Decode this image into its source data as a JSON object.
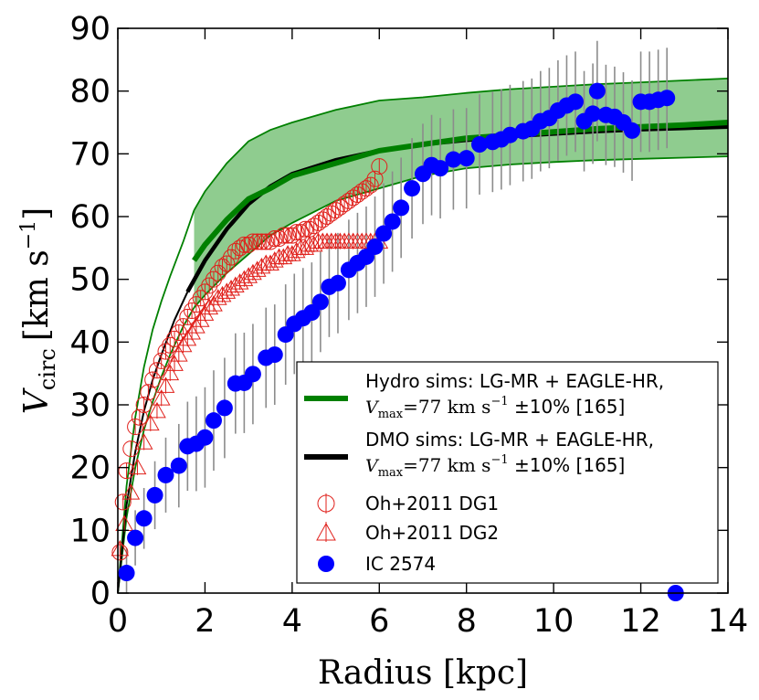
{
  "chart_data": {
    "type": "line",
    "title": "",
    "xlabel": "Radius [kpc]",
    "ylabel_symbol": "V",
    "ylabel_subscript": "circ",
    "ylabel_units": "[km s",
    "ylabel_exponent": "−1",
    "ylabel_close": "]",
    "xlim": [
      0,
      14
    ],
    "ylim": [
      0,
      90
    ],
    "xticks": [
      "0",
      "2",
      "4",
      "6",
      "8",
      "10",
      "12",
      "14"
    ],
    "yticks": [
      "0",
      "10",
      "20",
      "30",
      "40",
      "50",
      "60",
      "70",
      "80",
      "90"
    ],
    "colors": {
      "hydro": "#008000",
      "hydro_band": "#8fcc8f",
      "dmo": "#000000",
      "dg": "#e0201b",
      "ic": "#0000ff",
      "errorbar": "#8c8c8c"
    },
    "legend": {
      "position": "lower-right",
      "entries": [
        {
          "key": "hydro",
          "line1": "Hydro sims: LG-MR + EAGLE-HR,",
          "line2_sym": "V",
          "line2_sub": "max",
          "line2_rest": "=77 km s",
          "line2_exp": "−1",
          "line2_tail": "  ±10% [165]"
        },
        {
          "key": "dmo",
          "line1": "DMO sims: LG-MR + EAGLE-HR,",
          "line2_sym": "V",
          "line2_sub": "max",
          "line2_rest": "=77 km s",
          "line2_exp": "−1",
          "line2_tail": "  ±10% [165]"
        },
        {
          "key": "dg1",
          "line1": "Oh+2011 DG1"
        },
        {
          "key": "dg2",
          "line1": "Oh+2011 DG2"
        },
        {
          "key": "ic",
          "line1": "IC 2574"
        }
      ]
    },
    "series": [
      {
        "name": "Hydro sims: LG-MR + EAGLE-HR, Vmax=77 km/s ±10% [165] (median)",
        "x": [
          1.75,
          2.0,
          2.5,
          3.0,
          3.5,
          4.0,
          5.0,
          6.0,
          7.0,
          8.0,
          9.0,
          10.0,
          11.0,
          12.0,
          13.0,
          14.0
        ],
        "y": [
          53.0,
          55.5,
          59.5,
          62.8,
          64.5,
          66.5,
          68.5,
          70.5,
          71.5,
          72.5,
          73.0,
          73.5,
          74.0,
          74.3,
          74.6,
          75.0
        ]
      },
      {
        "name": "Hydro sims band upper",
        "x": [
          1.75,
          2.0,
          2.5,
          3.0,
          3.5,
          4.0,
          5.0,
          6.0,
          7.0,
          8.0,
          9.0,
          10.0,
          11.0,
          12.0,
          13.0,
          14.0
        ],
        "y": [
          61.0,
          64.0,
          68.5,
          72.0,
          73.8,
          75.0,
          77.0,
          78.5,
          79.0,
          79.7,
          80.3,
          80.7,
          81.1,
          81.4,
          81.7,
          82.0
        ]
      },
      {
        "name": "Hydro sims band lower",
        "x": [
          1.75,
          2.0,
          2.5,
          3.0,
          3.5,
          4.0,
          5.0,
          6.0,
          7.0,
          8.0,
          9.0,
          10.0,
          11.0,
          12.0,
          13.0,
          14.0
        ],
        "y": [
          45.5,
          47.5,
          51.0,
          54.0,
          57.0,
          59.0,
          62.5,
          64.5,
          66.5,
          67.7,
          68.3,
          68.7,
          69.0,
          69.2,
          69.4,
          69.6
        ]
      },
      {
        "name": "Hydro sims inner upper line",
        "x": [
          0.0,
          0.2,
          0.4,
          0.6,
          0.8,
          1.0,
          1.2,
          1.5,
          1.75
        ],
        "y": [
          0,
          17,
          28,
          36,
          42,
          46.5,
          50.5,
          56,
          61
        ]
      },
      {
        "name": "Hydro sims inner lower line",
        "x": [
          0.0,
          0.2,
          0.4,
          0.6,
          0.8,
          1.0,
          1.2,
          1.5,
          1.75
        ],
        "y": [
          0,
          12,
          20,
          26,
          30.5,
          34.5,
          38,
          42.5,
          45.5
        ]
      },
      {
        "name": "DMO sims: LG-MR + EAGLE-HR, Vmax=77 km/s ±10% [165]",
        "x": [
          0.0,
          0.2,
          0.4,
          0.6,
          0.8,
          1.0,
          1.3,
          1.6,
          2.0,
          2.5,
          3.0,
          3.5,
          4.0,
          5.0,
          6.0,
          7.0,
          8.0,
          9.0,
          10.0,
          11.0,
          12.0,
          13.0,
          14.0
        ],
        "y": [
          0,
          14,
          22.5,
          29,
          34,
          38,
          43.5,
          48,
          53,
          58,
          62,
          64.8,
          66.8,
          69,
          70.5,
          71.5,
          72.2,
          72.8,
          73.2,
          73.6,
          73.9,
          74.1,
          74.3
        ]
      },
      {
        "name": "Oh+2011 DG1",
        "x": [
          0.05,
          0.12,
          0.2,
          0.3,
          0.4,
          0.5,
          0.6,
          0.7,
          0.8,
          0.9,
          1.0,
          1.1,
          1.2,
          1.3,
          1.4,
          1.5,
          1.6,
          1.7,
          1.8,
          1.9,
          2.0,
          2.1,
          2.2,
          2.3,
          2.4,
          2.5,
          2.6,
          2.7,
          2.8,
          2.9,
          3.0,
          3.1,
          3.2,
          3.3,
          3.4,
          3.5,
          3.6,
          3.7,
          3.8,
          3.9,
          4.0,
          4.1,
          4.2,
          4.3,
          4.4,
          4.5,
          4.6,
          4.7,
          4.8,
          4.9,
          5.0,
          5.1,
          5.2,
          5.3,
          5.4,
          5.5,
          5.6,
          5.7,
          5.8,
          5.9,
          6.0
        ],
        "y": [
          6.5,
          14.5,
          19.5,
          23,
          26.5,
          28,
          30,
          32,
          34,
          35.5,
          37,
          38.5,
          39.5,
          40.5,
          41.5,
          42.5,
          44,
          45,
          46,
          47,
          48,
          49,
          50,
          51,
          52,
          52.5,
          53.5,
          54.5,
          55,
          55.5,
          55.5,
          56,
          56,
          56,
          56,
          56,
          56.5,
          56.5,
          57,
          57,
          57,
          57.5,
          57.5,
          58,
          58,
          58.5,
          59,
          59.5,
          60,
          60.5,
          61,
          61.5,
          62,
          62.5,
          63,
          63.5,
          64,
          64.5,
          65,
          66,
          68
        ]
      },
      {
        "name": "Oh+2011 DG2",
        "x": [
          0.05,
          0.15,
          0.3,
          0.45,
          0.6,
          0.75,
          0.9,
          1.0,
          1.1,
          1.2,
          1.3,
          1.4,
          1.5,
          1.6,
          1.7,
          1.8,
          1.9,
          2.0,
          2.1,
          2.2,
          2.3,
          2.4,
          2.5,
          2.6,
          2.7,
          2.8,
          2.9,
          3.0,
          3.1,
          3.2,
          3.3,
          3.4,
          3.5,
          3.6,
          3.7,
          3.8,
          3.9,
          4.0,
          4.1,
          4.2,
          4.3,
          4.4,
          4.5,
          4.6,
          4.7,
          4.8,
          4.9,
          5.0,
          5.1,
          5.2,
          5.3,
          5.4,
          5.5,
          5.6,
          5.7,
          5.8,
          5.9,
          6.0
        ],
        "y": [
          7,
          11,
          16,
          20,
          24,
          27,
          29,
          31,
          33,
          35,
          36.5,
          38,
          39.5,
          40.5,
          41.5,
          42.5,
          43.5,
          44.5,
          45.5,
          46,
          47,
          47.5,
          48,
          48.5,
          49,
          49.5,
          50,
          50.5,
          51,
          51.5,
          52,
          52.5,
          52.5,
          53,
          53.5,
          53.5,
          54,
          54,
          54.5,
          55,
          55,
          55.5,
          55.5,
          56,
          56,
          56,
          56,
          56,
          56,
          56,
          56,
          56,
          56,
          56,
          56,
          56,
          56,
          56
        ]
      },
      {
        "name": "IC 2574",
        "x": [
          0.2,
          0.4,
          0.6,
          0.85,
          1.1,
          1.4,
          1.6,
          1.8,
          2.0,
          2.2,
          2.45,
          2.7,
          2.9,
          3.1,
          3.4,
          3.6,
          3.85,
          4.05,
          4.25,
          4.45,
          4.65,
          4.85,
          5.05,
          5.3,
          5.5,
          5.7,
          5.9,
          6.1,
          6.3,
          6.5,
          6.75,
          7.0,
          7.2,
          7.4,
          7.7,
          8.0,
          8.3,
          8.6,
          8.8,
          9.0,
          9.3,
          9.5,
          9.7,
          9.9,
          10.1,
          10.3,
          10.5,
          10.7,
          10.9,
          11.0,
          11.2,
          11.4,
          11.6,
          11.8,
          12.0,
          12.2,
          12.4,
          12.6,
          12.8
        ],
        "y": [
          3.2,
          8.8,
          11.9,
          15.6,
          18.8,
          20.3,
          23.4,
          23.8,
          24.8,
          27.5,
          29.5,
          33.4,
          33.5,
          34.9,
          37.5,
          38,
          41.2,
          42.9,
          43.8,
          44.7,
          46.4,
          48.8,
          49.4,
          51.5,
          52.6,
          53.6,
          55.2,
          57.3,
          59.2,
          61.4,
          64.5,
          66.8,
          68.2,
          67.7,
          69.1,
          69.3,
          71.5,
          71.9,
          72.3,
          73.0,
          73.6,
          74.0,
          75.2,
          75.7,
          76.9,
          77.7,
          78.3,
          75.2,
          76.4,
          80.0,
          76.2,
          75.9,
          75.0,
          73.7,
          78.3,
          78.3,
          78.6,
          78.9,
          0
        ]
      }
    ]
  }
}
